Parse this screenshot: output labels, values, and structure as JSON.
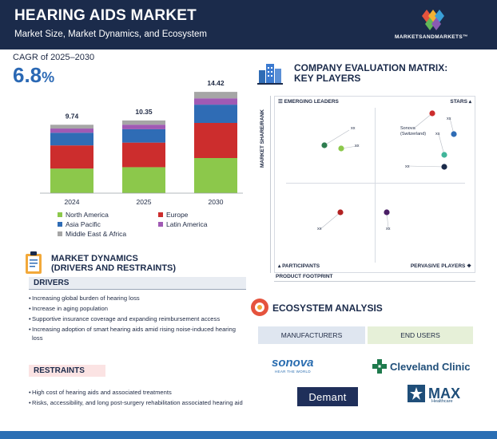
{
  "header": {
    "title": "HEARING AIDS MARKET",
    "subtitle": "Market Size, Market Dynamics, and Ecosystem",
    "brand": "MARKETSANDMARKETS™"
  },
  "cagr": {
    "label": "CAGR of 2025–2030",
    "value": "6.8",
    "unit": "%"
  },
  "chart_data": {
    "type": "bar",
    "stacked": true,
    "categories": [
      "2024",
      "2025",
      "2030"
    ],
    "totals": [
      "9.74",
      "10.35",
      "14.42"
    ],
    "series": [
      {
        "name": "North America",
        "color": "#8cc84b",
        "values": [
          3.5,
          3.7,
          5.0
        ]
      },
      {
        "name": "Europe",
        "color": "#cc2d2d",
        "values": [
          3.3,
          3.5,
          5.0
        ]
      },
      {
        "name": "Asia Pacific",
        "color": "#2f6cb5",
        "values": [
          1.8,
          1.9,
          2.6
        ]
      },
      {
        "name": "Latin America",
        "color": "#a05ab4",
        "values": [
          0.6,
          0.65,
          0.9
        ]
      },
      {
        "name": "Middle East & Africa",
        "color": "#a6a6a6",
        "values": [
          0.54,
          0.6,
          0.92
        ]
      }
    ],
    "ylim": [
      0,
      15
    ],
    "xlabel": "",
    "ylabel": ""
  },
  "legend": [
    "North America",
    "Europe",
    "Asia Pacific",
    "Latin America",
    "Middle East & Africa"
  ],
  "matrix": {
    "title_line1": "COMPANY EVALUATION MATRIX:",
    "title_line2": "KEY PLAYERS",
    "quadrants": {
      "top_left": "EMERGING LEADERS",
      "top_right": "STARS",
      "bottom_left": "PARTICIPANTS",
      "bottom_right": "PERVASIVE PLAYERS"
    },
    "y_axis": "MARKET SHARE/RANK",
    "x_axis": "PRODUCT FOOTPRINT",
    "points": [
      {
        "label": "xx",
        "color": "#2e7d4f",
        "quadrant": "emerging-leaders"
      },
      {
        "label": "xx",
        "color": "#8cc84b",
        "quadrant": "emerging-leaders"
      },
      {
        "label": "Sonova (Switzerland)",
        "color": "#cc2d2d",
        "quadrant": "stars"
      },
      {
        "label": "xx",
        "color": "#2f6cb5",
        "quadrant": "stars"
      },
      {
        "label": "xx",
        "color": "#40b59a",
        "quadrant": "stars"
      },
      {
        "label": "xx",
        "color": "#1b2b4b",
        "quadrant": "stars"
      },
      {
        "label": "xx",
        "color": "#b22222",
        "quadrant": "participants"
      },
      {
        "label": "xx",
        "color": "#4a1f66",
        "quadrant": "pervasive-players"
      }
    ]
  },
  "dynamics": {
    "title_line1": "MARKET DYNAMICS",
    "title_line2": "(DRIVERS AND RESTRAINTS)",
    "drivers_label": "DRIVERS",
    "drivers": [
      "Increasing global burden of hearing loss",
      "Increase in aging population",
      "Supportive insurance coverage and expanding reimbursement access",
      "Increasing adoption of smart hearing aids amid rising noise-induced hearing loss"
    ],
    "restraints_label": "RESTRAINTS",
    "restraints": [
      "High cost of hearing aids and associated treatments",
      "Risks, accessibility, and long post-surgery rehabilitation associated hearing aid"
    ]
  },
  "ecosystem": {
    "title": "ECOSYSTEM ANALYSIS",
    "manufacturers_label": "MANUFACTURERS",
    "end_users_label": "END USERS",
    "sonova": "sonova",
    "sonova_tagline": "HEAR THE WORLD",
    "demant": "Demant",
    "cleveland": "Cleveland Clinic",
    "max": "MAX",
    "max_sub": "Healthcare"
  }
}
